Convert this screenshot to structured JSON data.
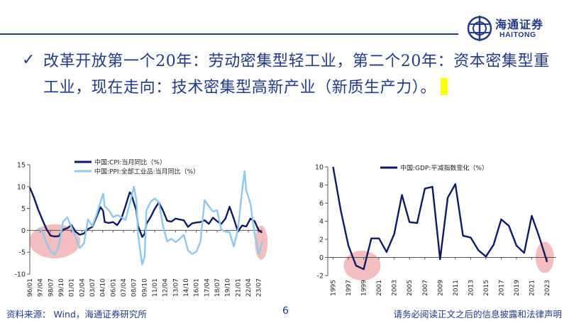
{
  "brand": {
    "name_cn": "海通证券",
    "name_en": "HAITONG",
    "color": "#1f3a8f"
  },
  "headline": {
    "bullet_icon": "checkmark-icon",
    "text": "改革开放第一个20年：劳动密集型轻工业，第二个20年：资本密集型重工业，现在走向：技术密集型高新产业（新质生产力）。"
  },
  "footer": {
    "source": "资料来源： Wind，海通证券研究所",
    "page": "6",
    "disclaimer": "请务必阅读正文之后的信息披露和法律声明"
  },
  "chart_data": [
    {
      "type": "line",
      "ylim": [
        -10,
        15
      ],
      "yticks": [
        -10,
        -5,
        0,
        5,
        10,
        15
      ],
      "xticks": [
        "96/01",
        "97/04",
        "98/07",
        "99/10",
        "01/01",
        "02/04",
        "03/07",
        "04/10",
        "06/01",
        "07/04",
        "08/07",
        "09/10",
        "11/01",
        "12/04",
        "13/07",
        "14/10",
        "16/01",
        "17/04",
        "18/07",
        "19/10",
        "21/01",
        "22/04",
        "23/07"
      ],
      "grid": false,
      "legend_position": "top",
      "series": [
        {
          "name": "中国:CPI:当月同比（%）",
          "color": "#0d1a6b",
          "x": [
            1996.0,
            1996.5,
            1997.0,
            1997.5,
            1998.0,
            1998.5,
            1999.0,
            1999.5,
            2000.0,
            2000.5,
            2001.0,
            2001.5,
            2002.0,
            2002.5,
            2003.0,
            2003.5,
            2004.0,
            2004.5,
            2004.8,
            2005.0,
            2005.5,
            2006.0,
            2006.5,
            2007.0,
            2007.5,
            2008.0,
            2008.2,
            2008.5,
            2008.8,
            2009.0,
            2009.5,
            2009.8,
            2010.0,
            2010.5,
            2011.0,
            2011.5,
            2012.0,
            2012.5,
            2013.0,
            2013.5,
            2014.0,
            2014.5,
            2015.0,
            2015.5,
            2016.0,
            2016.5,
            2017.0,
            2017.5,
            2018.0,
            2018.5,
            2019.0,
            2019.5,
            2020.0,
            2020.2,
            2020.5,
            2021.0,
            2021.5,
            2022.0,
            2022.5,
            2023.0,
            2023.5,
            2023.9
          ],
          "y": [
            9.8,
            7.5,
            4.8,
            2.5,
            0.3,
            -1.2,
            -1.4,
            -1.3,
            0.2,
            0.5,
            1.2,
            -0.3,
            -1.0,
            -0.7,
            0.3,
            0.8,
            3.0,
            5.3,
            4.5,
            1.9,
            1.7,
            1.9,
            1.2,
            2.7,
            5.6,
            8.7,
            8.3,
            6.3,
            4.5,
            1.0,
            -1.5,
            -0.8,
            1.5,
            3.0,
            4.9,
            6.4,
            4.5,
            2.2,
            2.0,
            2.7,
            2.5,
            2.3,
            0.8,
            1.6,
            1.8,
            1.9,
            2.3,
            1.5,
            2.9,
            2.1,
            1.5,
            2.7,
            5.4,
            4.3,
            2.7,
            -0.3,
            1.1,
            0.9,
            2.7,
            2.1,
            0.0,
            -0.5
          ]
        },
        {
          "name": "中国:PPI:全部工业品:当月同比（%）",
          "color": "#8ec8f0",
          "x": [
            1997.0,
            1997.5,
            1998.0,
            1998.5,
            1999.0,
            1999.5,
            2000.0,
            2000.5,
            2001.0,
            2001.5,
            2002.0,
            2002.5,
            2003.0,
            2003.5,
            2004.0,
            2004.5,
            2004.8,
            2005.0,
            2005.5,
            2006.0,
            2006.5,
            2007.0,
            2007.5,
            2008.0,
            2008.5,
            2008.8,
            2009.0,
            2009.5,
            2009.8,
            2010.0,
            2010.5,
            2011.0,
            2011.5,
            2012.0,
            2012.5,
            2013.0,
            2013.5,
            2014.0,
            2014.5,
            2015.0,
            2015.5,
            2016.0,
            2016.5,
            2017.0,
            2017.5,
            2018.0,
            2018.5,
            2019.0,
            2019.5,
            2020.0,
            2020.5,
            2021.0,
            2021.5,
            2021.8,
            2022.0,
            2022.5,
            2023.0,
            2023.5,
            2023.9
          ],
          "y": [
            0.5,
            -0.3,
            -2.8,
            -4.8,
            -5.5,
            -3.5,
            2.0,
            3.0,
            0.8,
            -1.5,
            -4.0,
            -3.0,
            2.5,
            1.0,
            3.5,
            6.5,
            8.4,
            5.5,
            4.6,
            3.0,
            3.5,
            3.0,
            2.4,
            6.0,
            10.0,
            7.0,
            -1.0,
            -7.8,
            -6.0,
            4.5,
            6.5,
            7.3,
            6.5,
            1.0,
            -2.5,
            -1.9,
            -2.7,
            -2.0,
            -1.0,
            -4.6,
            -5.4,
            -4.9,
            -2.6,
            6.9,
            5.5,
            4.3,
            4.6,
            0.2,
            -0.3,
            -0.4,
            -3.7,
            0.3,
            9.0,
            13.5,
            9.1,
            6.1,
            -0.8,
            -5.4,
            -2.7
          ]
        }
      ]
    },
    {
      "type": "line",
      "ylim": [
        -2,
        10
      ],
      "yticks": [
        -2,
        0,
        2,
        4,
        6,
        8,
        10
      ],
      "xticks": [
        "1995",
        "1997",
        "1999",
        "2001",
        "2003",
        "2005",
        "2007",
        "2009",
        "2011",
        "2013",
        "2015",
        "2017",
        "2019",
        "2021",
        "2023"
      ],
      "grid": false,
      "legend_position": "top",
      "series": [
        {
          "name": "中国:GDP:平减指数变化（%）",
          "color": "#0d1a6b",
          "x": [
            1995,
            1996,
            1997,
            1998,
            1999,
            2000,
            2001,
            2002,
            2003,
            2004,
            2005,
            2006,
            2007,
            2008,
            2009,
            2010,
            2011,
            2012,
            2013,
            2014,
            2015,
            2016,
            2017,
            2018,
            2019,
            2020,
            2021,
            2022,
            2023
          ],
          "y": [
            10.0,
            5.2,
            1.3,
            -0.9,
            -1.3,
            2.1,
            2.1,
            0.6,
            2.6,
            6.9,
            3.9,
            3.8,
            7.6,
            7.8,
            -0.2,
            6.6,
            8.1,
            2.4,
            2.2,
            0.8,
            0.1,
            1.4,
            4.2,
            3.5,
            1.3,
            0.5,
            4.6,
            2.2,
            -0.5
          ]
        }
      ]
    }
  ]
}
